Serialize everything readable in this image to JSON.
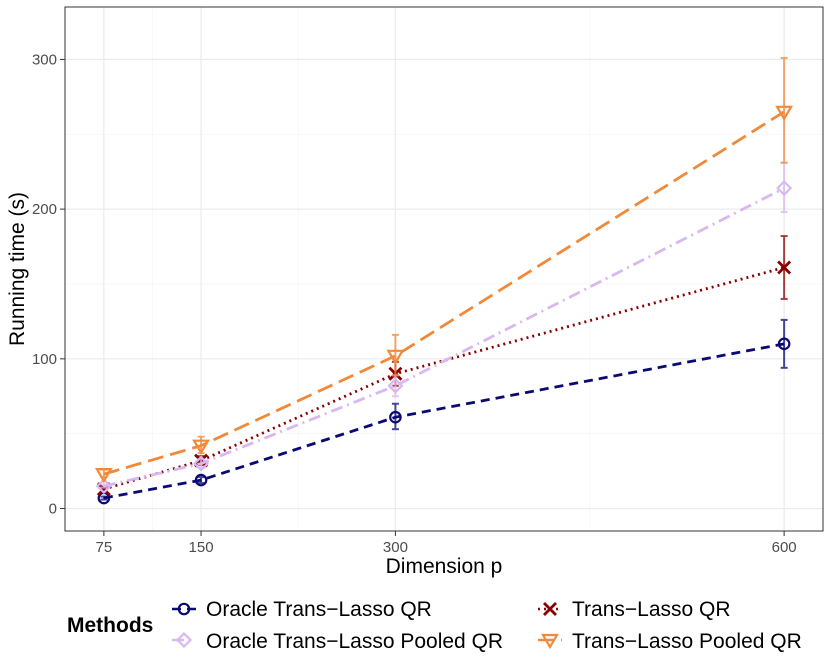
{
  "chart_data": {
    "type": "line",
    "title": "",
    "xlabel": "Dimension p",
    "ylabel": "Running time (s)",
    "x": [
      75,
      150,
      300,
      600
    ],
    "x_tick_labels": [
      "75",
      "150",
      "300",
      "600"
    ],
    "xlim": [
      45,
      630
    ],
    "ylim": [
      -15,
      335
    ],
    "y_ticks": [
      0,
      100,
      200,
      300
    ],
    "y_tick_labels": [
      "0",
      "100",
      "200",
      "300"
    ],
    "grid": true,
    "legend_position": "bottom",
    "legend_title": "Methods",
    "series": [
      {
        "name": "Oracle Trans−Lasso QR",
        "color": "#0a0a72",
        "linestyle": "dashed",
        "marker": "circle",
        "values": [
          7,
          19,
          61,
          110
        ],
        "error_low": [
          6,
          17,
          53,
          94
        ],
        "error_high": [
          8,
          21,
          70,
          126
        ]
      },
      {
        "name": "Trans−Lasso QR",
        "color": "#8b0000",
        "linestyle": "dotted",
        "marker": "cross",
        "values": [
          13,
          32,
          90,
          161
        ],
        "error_low": [
          12,
          29,
          82,
          140
        ],
        "error_high": [
          14,
          35,
          98,
          182
        ]
      },
      {
        "name": "Oracle Trans−Lasso Pooled QR",
        "color": "#d8b8f0",
        "linestyle": "dashdot",
        "marker": "diamond",
        "values": [
          15,
          30,
          82,
          214
        ],
        "error_low": [
          14,
          27,
          75,
          198
        ],
        "error_high": [
          16,
          33,
          89,
          231
        ]
      },
      {
        "name": "Trans−Lasso Pooled QR",
        "color": "#f0893a",
        "linestyle": "longdash",
        "marker": "triangle-down",
        "values": [
          23,
          42,
          102,
          265
        ],
        "error_low": [
          21,
          37,
          89,
          231
        ],
        "error_high": [
          26,
          48,
          116,
          301
        ]
      }
    ]
  }
}
